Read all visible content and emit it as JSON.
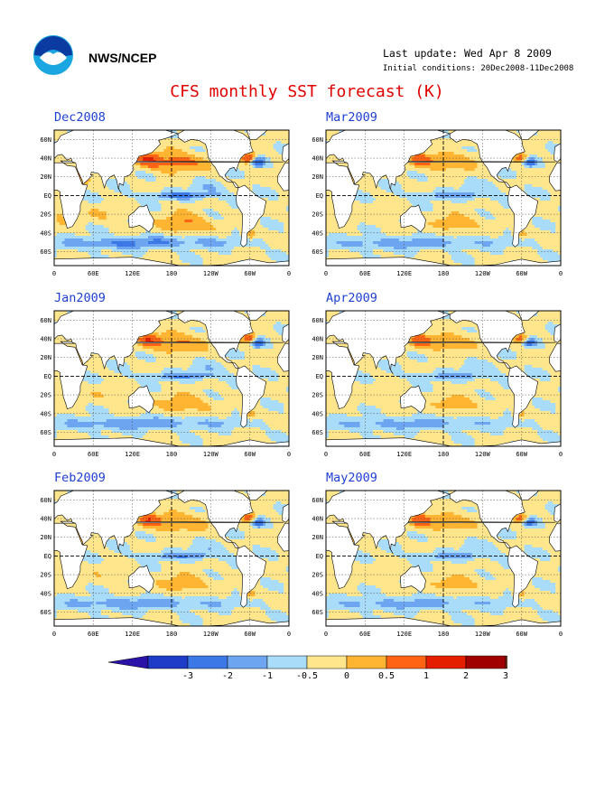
{
  "header": {
    "org": "NWS/NCEP",
    "last_update": "Last update: Wed Apr  8 2009",
    "initial_conditions": "Initial conditions: 20Dec2008-11Dec2008"
  },
  "title": "CFS monthly SST forecast (K)",
  "axes": {
    "lat_labels": [
      "60N",
      "40N",
      "20N",
      "EQ",
      "20S",
      "40S",
      "60S"
    ],
    "lon_labels": [
      "0",
      "60E",
      "120E",
      "180",
      "120W",
      "60W",
      "0"
    ]
  },
  "panels": [
    {
      "id": "dec",
      "title": "Dec2008",
      "intensity": 1.0
    },
    {
      "id": "mar",
      "title": "Mar2009",
      "intensity": 0.75
    },
    {
      "id": "jan",
      "title": "Jan2009",
      "intensity": 0.85
    },
    {
      "id": "apr",
      "title": "Apr2009",
      "intensity": 0.7
    },
    {
      "id": "feb",
      "title": "Feb2009",
      "intensity": 0.8
    },
    {
      "id": "may",
      "title": "May2009",
      "intensity": 0.7
    }
  ],
  "colorbar": {
    "labels": [
      "-3",
      "-2",
      "-1",
      "-0.5",
      "0",
      "0.5",
      "1",
      "2",
      "3"
    ],
    "colors": [
      "#1e3cc8",
      "#3c78e6",
      "#6ea5f0",
      "#a8dcf8",
      "#ffe68c",
      "#ffb432",
      "#ff6414",
      "#e61e00",
      "#a00000"
    ],
    "under_color": "#2a12a8",
    "over_color": "#6e3c28"
  },
  "colors": {
    "land": "#ffffff",
    "ocean_base": "#bfe6fb",
    "title": "#e00000",
    "panel_title": "#1f3fd0"
  }
}
